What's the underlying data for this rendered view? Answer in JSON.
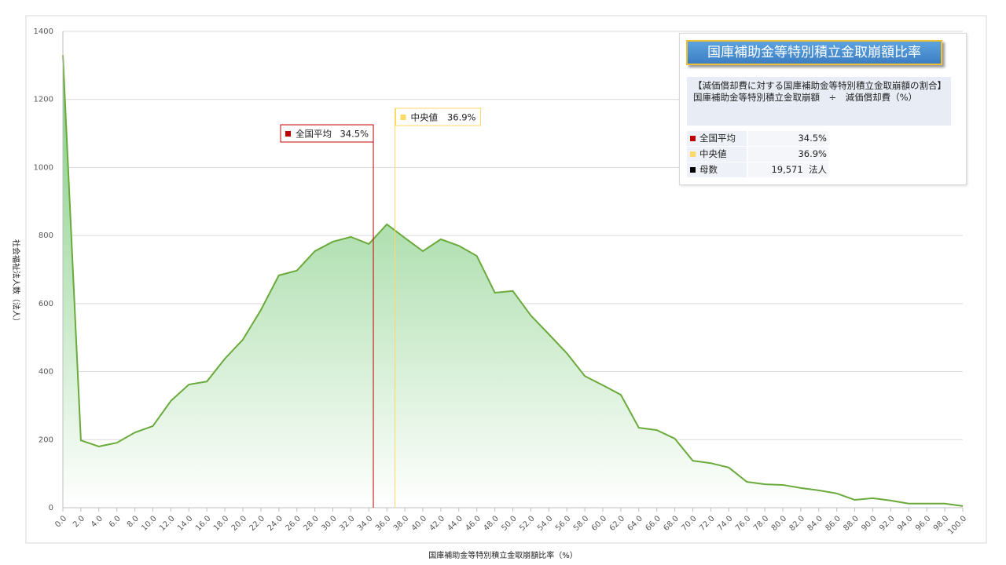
{
  "chart_data": {
    "type": "area",
    "x_axis_title": "国庫補助金等特別積立金取崩額比率（%）",
    "y_axis_title": "社会福祉法人数（法人）",
    "x": [
      0,
      2,
      4,
      6,
      8,
      10,
      12,
      14,
      16,
      18,
      20,
      22,
      24,
      26,
      28,
      30,
      32,
      34,
      36,
      38,
      40,
      42,
      44,
      46,
      48,
      50,
      52,
      54,
      56,
      58,
      60,
      62,
      64,
      66,
      68,
      70,
      72,
      74,
      76,
      78,
      80,
      82,
      84,
      86,
      88,
      90,
      92,
      94,
      96,
      98,
      100
    ],
    "values": [
      1330,
      198,
      180,
      191,
      221,
      240,
      314,
      362,
      371,
      438,
      494,
      581,
      683,
      697,
      754,
      782,
      796,
      775,
      833,
      793,
      754,
      789,
      770,
      740,
      632,
      637,
      565,
      510,
      454,
      387,
      360,
      332,
      235,
      228,
      203,
      138,
      131,
      118,
      76,
      69,
      67,
      58,
      51,
      42,
      23,
      28,
      21,
      12,
      12,
      12,
      5
    ],
    "color": "#6aaa3a",
    "fill_color": "#7fcc80",
    "xlim": [
      0,
      100
    ],
    "ylim": [
      0,
      1400
    ],
    "yticks": [
      0,
      200,
      400,
      600,
      800,
      1000,
      1200,
      1400
    ],
    "xticks": [
      {
        "value": 0,
        "label": "0.0"
      },
      {
        "value": 2,
        "label": "2.0"
      },
      {
        "value": 4,
        "label": "4.0"
      },
      {
        "value": 6,
        "label": "6.0"
      },
      {
        "value": 8,
        "label": "8.0"
      },
      {
        "value": 10,
        "label": "10.0"
      },
      {
        "value": 12,
        "label": "12.0"
      },
      {
        "value": 14,
        "label": "14.0"
      },
      {
        "value": 16,
        "label": "16.0"
      },
      {
        "value": 18,
        "label": "18.0"
      },
      {
        "value": 20,
        "label": "20.0"
      },
      {
        "value": 22,
        "label": "22.0"
      },
      {
        "value": 24,
        "label": "24.0"
      },
      {
        "value": 26,
        "label": "26.0"
      },
      {
        "value": 28,
        "label": "28.0"
      },
      {
        "value": 30,
        "label": "30.0"
      },
      {
        "value": 32,
        "label": "32.0"
      },
      {
        "value": 34,
        "label": "34.0"
      },
      {
        "value": 36,
        "label": "36.0"
      },
      {
        "value": 38,
        "label": "38.0"
      },
      {
        "value": 40,
        "label": "40.0"
      },
      {
        "value": 42,
        "label": "42.0"
      },
      {
        "value": 44,
        "label": "44.0"
      },
      {
        "value": 46,
        "label": "46.0"
      },
      {
        "value": 48,
        "label": "48.0"
      },
      {
        "value": 50,
        "label": "50.0"
      },
      {
        "value": 52,
        "label": "52.0"
      },
      {
        "value": 54,
        "label": "54.0"
      },
      {
        "value": 56,
        "label": "56.0"
      },
      {
        "value": 58,
        "label": "58.0"
      },
      {
        "value": 60,
        "label": "60.0"
      },
      {
        "value": 62,
        "label": "62.0"
      },
      {
        "value": 64,
        "label": "64.0"
      },
      {
        "value": 66,
        "label": "66.0"
      },
      {
        "value": 68,
        "label": "68.0"
      },
      {
        "value": 70,
        "label": "70.0"
      },
      {
        "value": 72,
        "label": "72.0"
      },
      {
        "value": 74,
        "label": "74.0"
      },
      {
        "value": 76,
        "label": "76.0"
      },
      {
        "value": 78,
        "label": "78.0"
      },
      {
        "value": 80,
        "label": "80.0"
      },
      {
        "value": 82,
        "label": "82.0"
      },
      {
        "value": 84,
        "label": "84.0"
      },
      {
        "value": 86,
        "label": "86.0"
      },
      {
        "value": 88,
        "label": "88.0"
      },
      {
        "value": 90,
        "label": "90.0"
      },
      {
        "value": 92,
        "label": "92.0"
      },
      {
        "value": 94,
        "label": "94.0"
      },
      {
        "value": 96,
        "label": "96.0"
      },
      {
        "value": 98,
        "label": "98.0"
      },
      {
        "value": 100,
        "label": "100.0"
      }
    ],
    "grid": true,
    "reference_lines": [
      {
        "name": "全国平均",
        "value": 34.5,
        "label": "34.5%",
        "color": "#c00000",
        "label_side": "left"
      },
      {
        "name": "中央値",
        "value": 36.9,
        "label": "36.9%",
        "color": "#ffd966",
        "label_side": "right"
      }
    ],
    "panel": {
      "title": "国庫補助金等特別積立金取崩額比率",
      "description": [
        "【減価償却費に対する国庫補助金等特別積立金取崩額の割合】",
        "国庫補助金等特別積立金取崩額　÷　減価償却費（%）"
      ],
      "population": {
        "name": "母数",
        "value": 19571,
        "label": "19,571",
        "unit": "法人",
        "color": "#000000"
      }
    }
  }
}
